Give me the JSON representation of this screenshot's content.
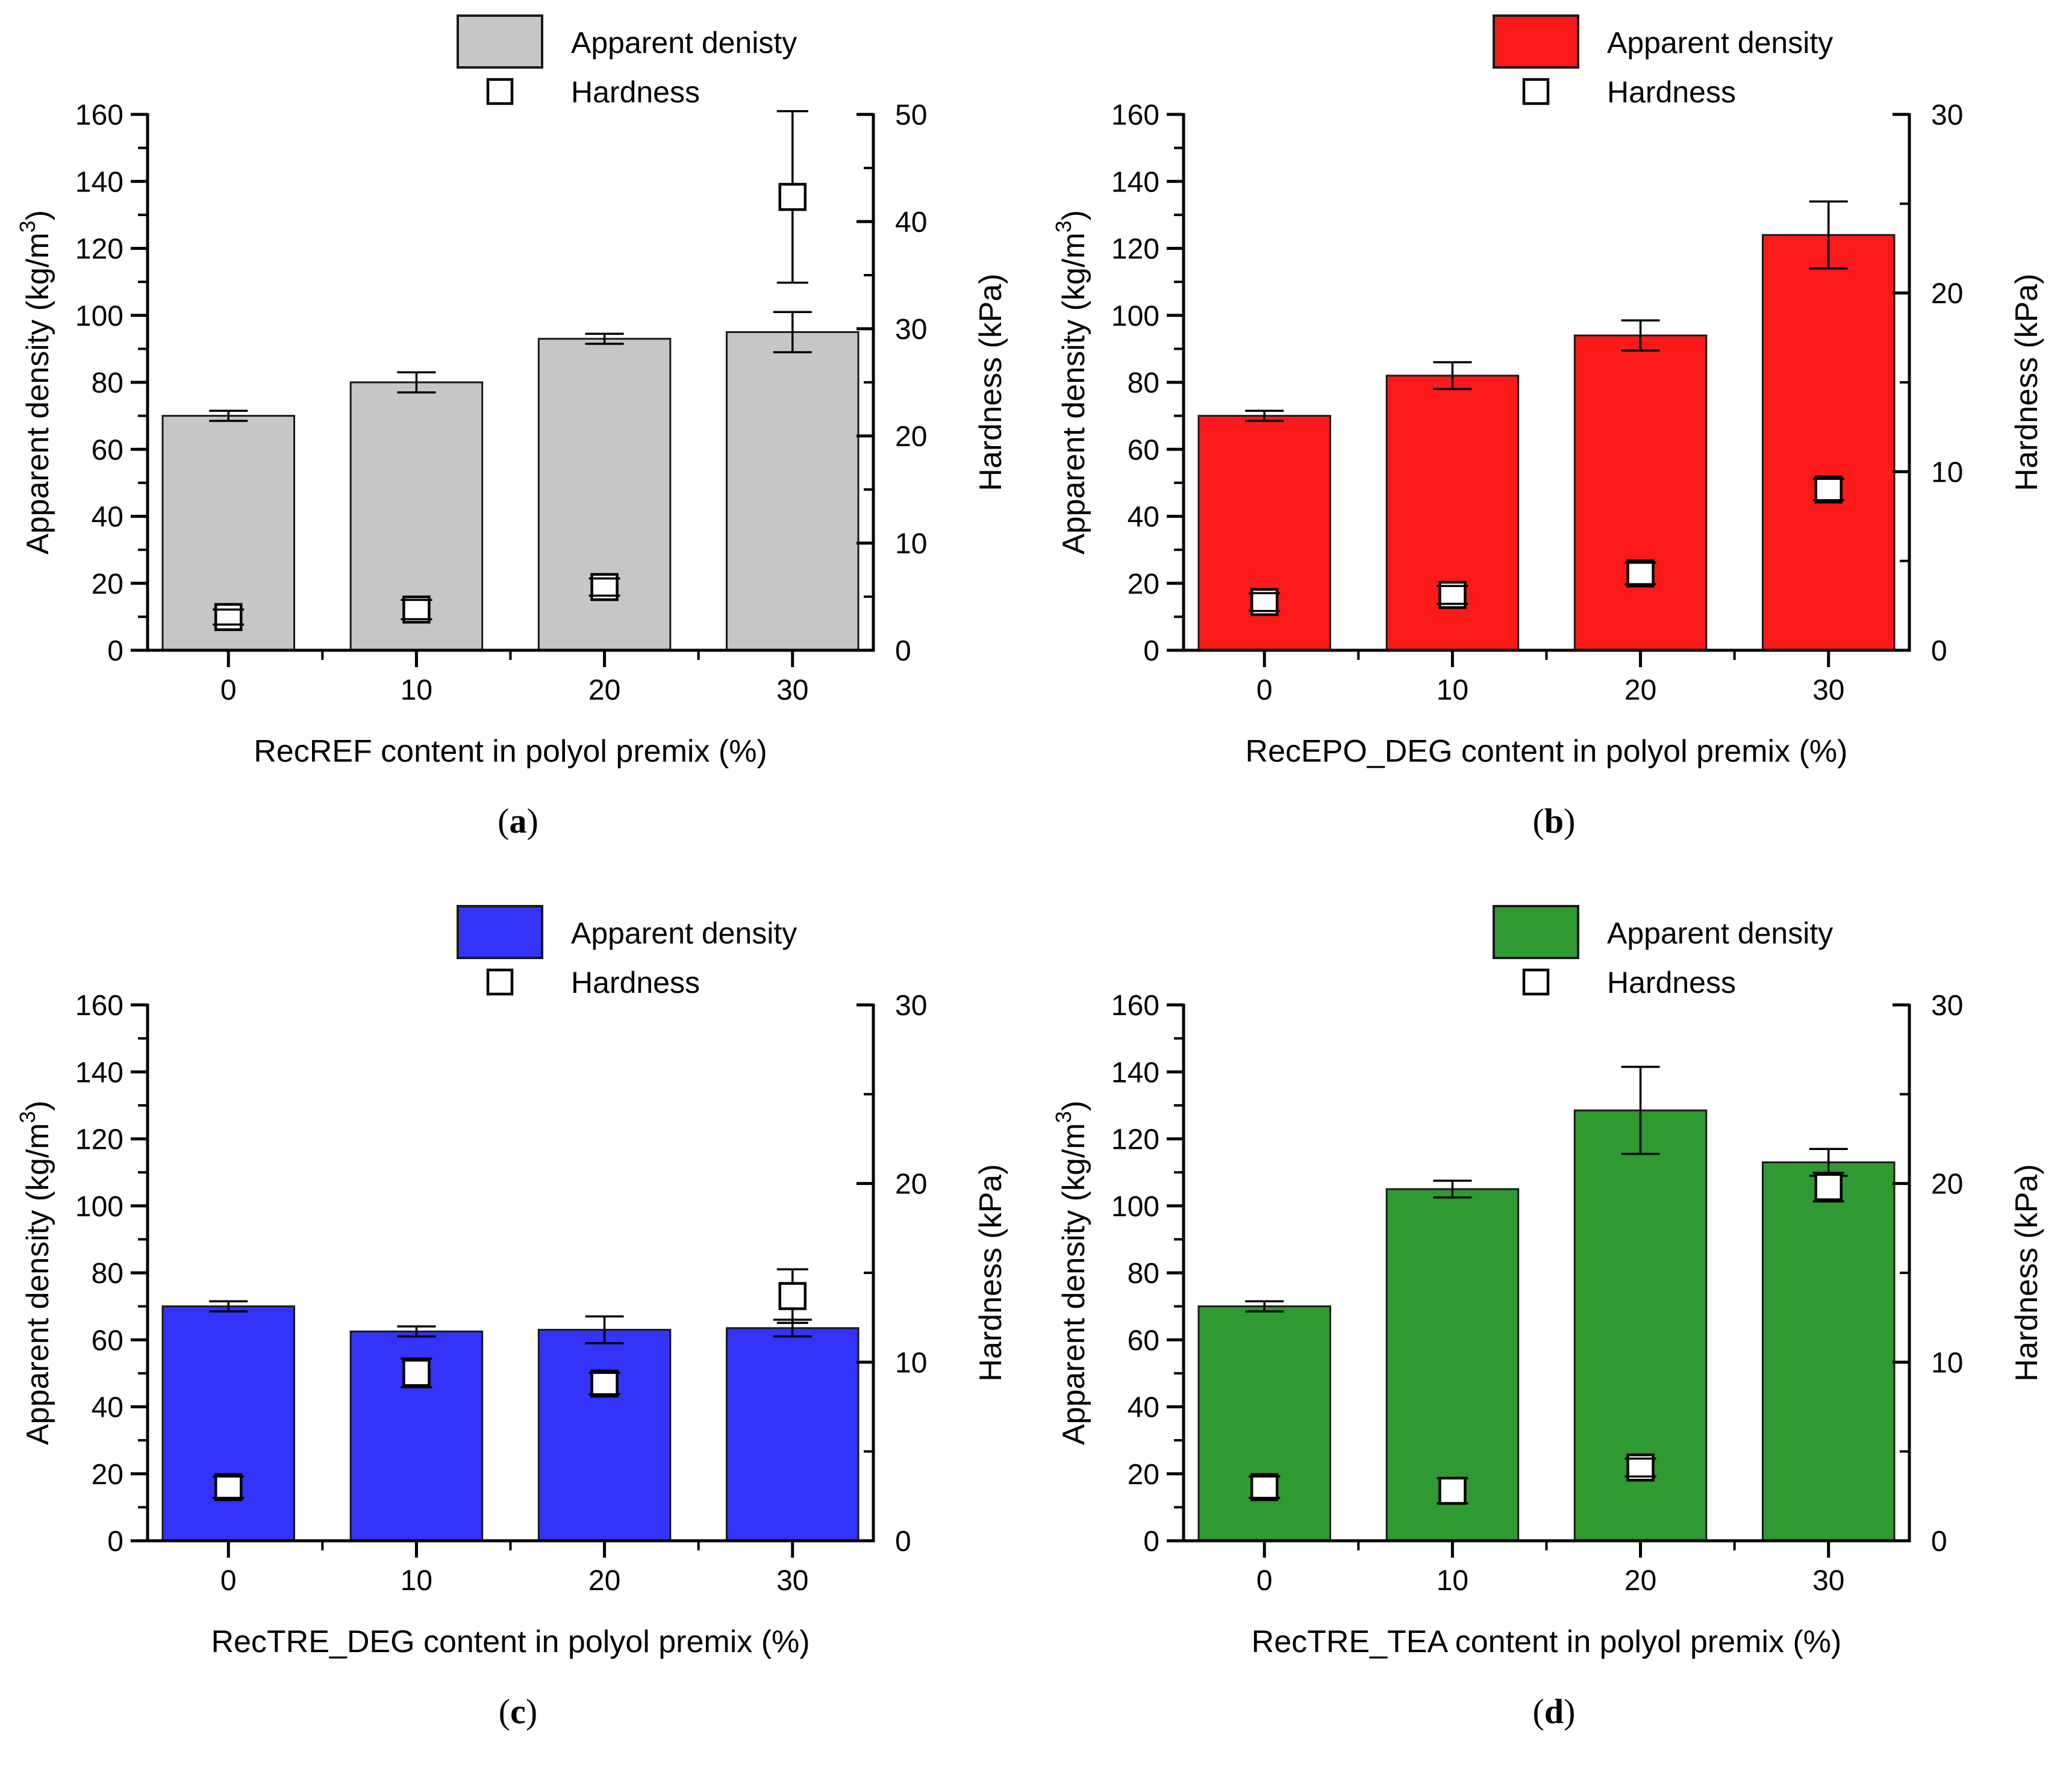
{
  "page": {
    "background": "#ffffff",
    "figure_type": "four-panel dual-axis bar chart figure"
  },
  "chart_data": [
    {
      "panel": "a",
      "type": "bar",
      "caption_open": "(",
      "caption_letter": "a",
      "caption_close": ")",
      "x_label": "RecREF content in polyol premix (%)",
      "categories": [
        0,
        10,
        20,
        30
      ],
      "y_left": {
        "label_pre": "Apparent density (kg/m",
        "label_sup": "3",
        "label_post": ")",
        "range": [
          0,
          160
        ],
        "major_tick": 20,
        "minor_tick": 10
      },
      "y_right": {
        "label": "Hardness (kPa)",
        "range": [
          0,
          50
        ],
        "major_tick": 10,
        "minor_tick": 5
      },
      "legend": {
        "density_label": "Apparent denisty",
        "hardness_label": "Hardness"
      },
      "bar_color": "#c6c6c6",
      "bar_edge_color": "#1a1a1a",
      "marker_fill": "#ffffff",
      "marker_edge_color": "#000000",
      "series": [
        {
          "name": "Apparent denisty",
          "axis": "left",
          "render": "bar",
          "values": [
            70,
            80,
            93,
            95
          ],
          "errors": [
            1.5,
            3,
            1.5,
            6
          ]
        },
        {
          "name": "Hardness",
          "axis": "right",
          "render": "scatter-square",
          "values": [
            3.1,
            3.8,
            5.9,
            42.3
          ],
          "errors": [
            0.7,
            0.9,
            0.8,
            8.0
          ]
        }
      ],
      "legend_position": "top-center",
      "grid": false
    },
    {
      "panel": "b",
      "type": "bar",
      "caption_open": "(",
      "caption_letter": "b",
      "caption_close": ")",
      "x_label": "RecEPO_DEG content in polyol premix (%)",
      "categories": [
        0,
        10,
        20,
        30
      ],
      "y_left": {
        "label_pre": "Apparent density (kg/m",
        "label_sup": "3",
        "label_post": ")",
        "range": [
          0,
          160
        ],
        "major_tick": 20,
        "minor_tick": 10
      },
      "y_right": {
        "label": "Hardness (kPa)",
        "range": [
          0,
          30
        ],
        "major_tick": 10,
        "minor_tick": 5
      },
      "legend": {
        "density_label": "Apparent density",
        "hardness_label": "Hardness"
      },
      "bar_color": "#fa1a1a",
      "bar_edge_color": "#1a1a1a",
      "marker_fill": "#ffffff",
      "marker_edge_color": "#000000",
      "series": [
        {
          "name": "Apparent density",
          "axis": "left",
          "render": "bar",
          "values": [
            70,
            82,
            94,
            124
          ],
          "errors": [
            1.5,
            4,
            4.5,
            10
          ]
        },
        {
          "name": "Hardness",
          "axis": "right",
          "render": "scatter-square",
          "values": [
            2.7,
            3.1,
            4.3,
            9.0
          ],
          "errors": [
            0.5,
            0.5,
            0.6,
            0.6
          ]
        }
      ],
      "legend_position": "top-center",
      "grid": false
    },
    {
      "panel": "c",
      "type": "bar",
      "caption_open": "(",
      "caption_letter": "c",
      "caption_close": ")",
      "x_label": "RecTRE_DEG content in polyol premix (%)",
      "categories": [
        0,
        10,
        20,
        30
      ],
      "y_left": {
        "label_pre": "Apparent density (kg/m",
        "label_sup": "3",
        "label_post": ")",
        "range": [
          0,
          160
        ],
        "major_tick": 20,
        "minor_tick": 10
      },
      "y_right": {
        "label": "Hardness (kPa)",
        "range": [
          0,
          30
        ],
        "major_tick": 10,
        "minor_tick": 5
      },
      "legend": {
        "density_label": "Apparent density",
        "hardness_label": "Hardness"
      },
      "bar_color": "#3333fa",
      "bar_edge_color": "#1a1a1a",
      "marker_fill": "#ffffff",
      "marker_edge_color": "#000000",
      "series": [
        {
          "name": "Apparent density",
          "axis": "left",
          "render": "bar",
          "values": [
            70,
            62.5,
            63,
            63.5
          ],
          "errors": [
            1.5,
            1.5,
            4,
            2.5
          ]
        },
        {
          "name": "Hardness",
          "axis": "right",
          "render": "scatter-square",
          "values": [
            3.0,
            9.4,
            8.8,
            13.7
          ],
          "errors": [
            0.6,
            0.8,
            0.6,
            1.5
          ]
        }
      ],
      "legend_position": "top-center",
      "grid": false
    },
    {
      "panel": "d",
      "type": "bar",
      "caption_open": "(",
      "caption_letter": "d",
      "caption_close": ")",
      "x_label": "RecTRE_TEA content in polyol premix (%)",
      "categories": [
        0,
        10,
        20,
        30
      ],
      "y_left": {
        "label_pre": "Apparent density (kg/m",
        "label_sup": "3",
        "label_post": ")",
        "range": [
          0,
          160
        ],
        "major_tick": 20,
        "minor_tick": 10
      },
      "y_right": {
        "label": "Hardness (kPa)",
        "range": [
          0,
          30
        ],
        "major_tick": 10,
        "minor_tick": 5
      },
      "legend": {
        "density_label": "Apparent density",
        "hardness_label": "Hardness"
      },
      "bar_color": "#2f9932",
      "bar_edge_color": "#1a1a1a",
      "marker_fill": "#ffffff",
      "marker_edge_color": "#000000",
      "series": [
        {
          "name": "Apparent density",
          "axis": "left",
          "render": "bar",
          "values": [
            70,
            105,
            128.5,
            113
          ],
          "errors": [
            1.5,
            2.5,
            13,
            4
          ]
        },
        {
          "name": "Hardness",
          "axis": "right",
          "render": "scatter-square",
          "values": [
            3.0,
            2.8,
            4.1,
            19.8
          ],
          "errors": [
            0.6,
            0.7,
            0.5,
            0.8
          ]
        }
      ],
      "legend_position": "top-center",
      "grid": false
    }
  ]
}
